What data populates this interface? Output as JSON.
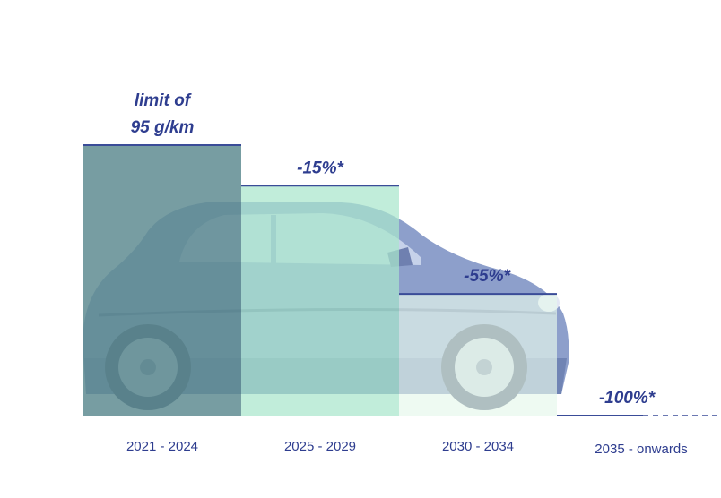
{
  "chart_data": {
    "type": "bar",
    "categories": [
      "2021 - 2024",
      "2025 - 2029",
      "2030 - 2034",
      "2035 - onwards"
    ],
    "values": [
      100,
      85,
      45,
      0
    ],
    "annotations": [
      "limit of\n95 g/km",
      "-15%*",
      "-55%*",
      "-100%*"
    ],
    "ylim": [
      0,
      100
    ],
    "grid": false,
    "legend": "none"
  },
  "colors": {
    "label_blue": "#2e3d8f",
    "bar_1": "#5f8c92",
    "bar_2": "#a9e6cc",
    "bar_3": "#e6f7ec",
    "bar_edge": "#3a4c98",
    "car_body": "#8a9cc9",
    "car_dark": "#3b4866"
  },
  "background_image": "car-icon"
}
